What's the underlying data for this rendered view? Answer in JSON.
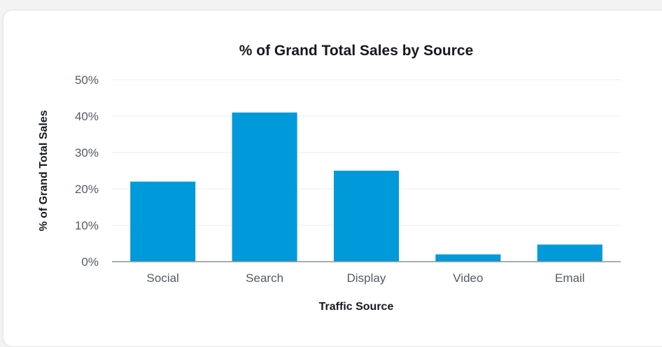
{
  "chart_data": {
    "type": "bar",
    "title": "% of Grand Total Sales by Source",
    "xlabel": "Traffic Source",
    "ylabel": "% of Grand Total Sales",
    "categories": [
      "Social",
      "Search",
      "Display",
      "Video",
      "Email"
    ],
    "values": [
      22,
      41,
      25,
      2,
      4.7
    ],
    "ylim": [
      0,
      50
    ],
    "yticks": [
      0,
      10,
      20,
      30,
      40,
      50
    ],
    "ytick_labels": [
      "0%",
      "10%",
      "20%",
      "30%",
      "40%",
      "50%"
    ],
    "grid": true,
    "bar_color": "#0099d9"
  }
}
